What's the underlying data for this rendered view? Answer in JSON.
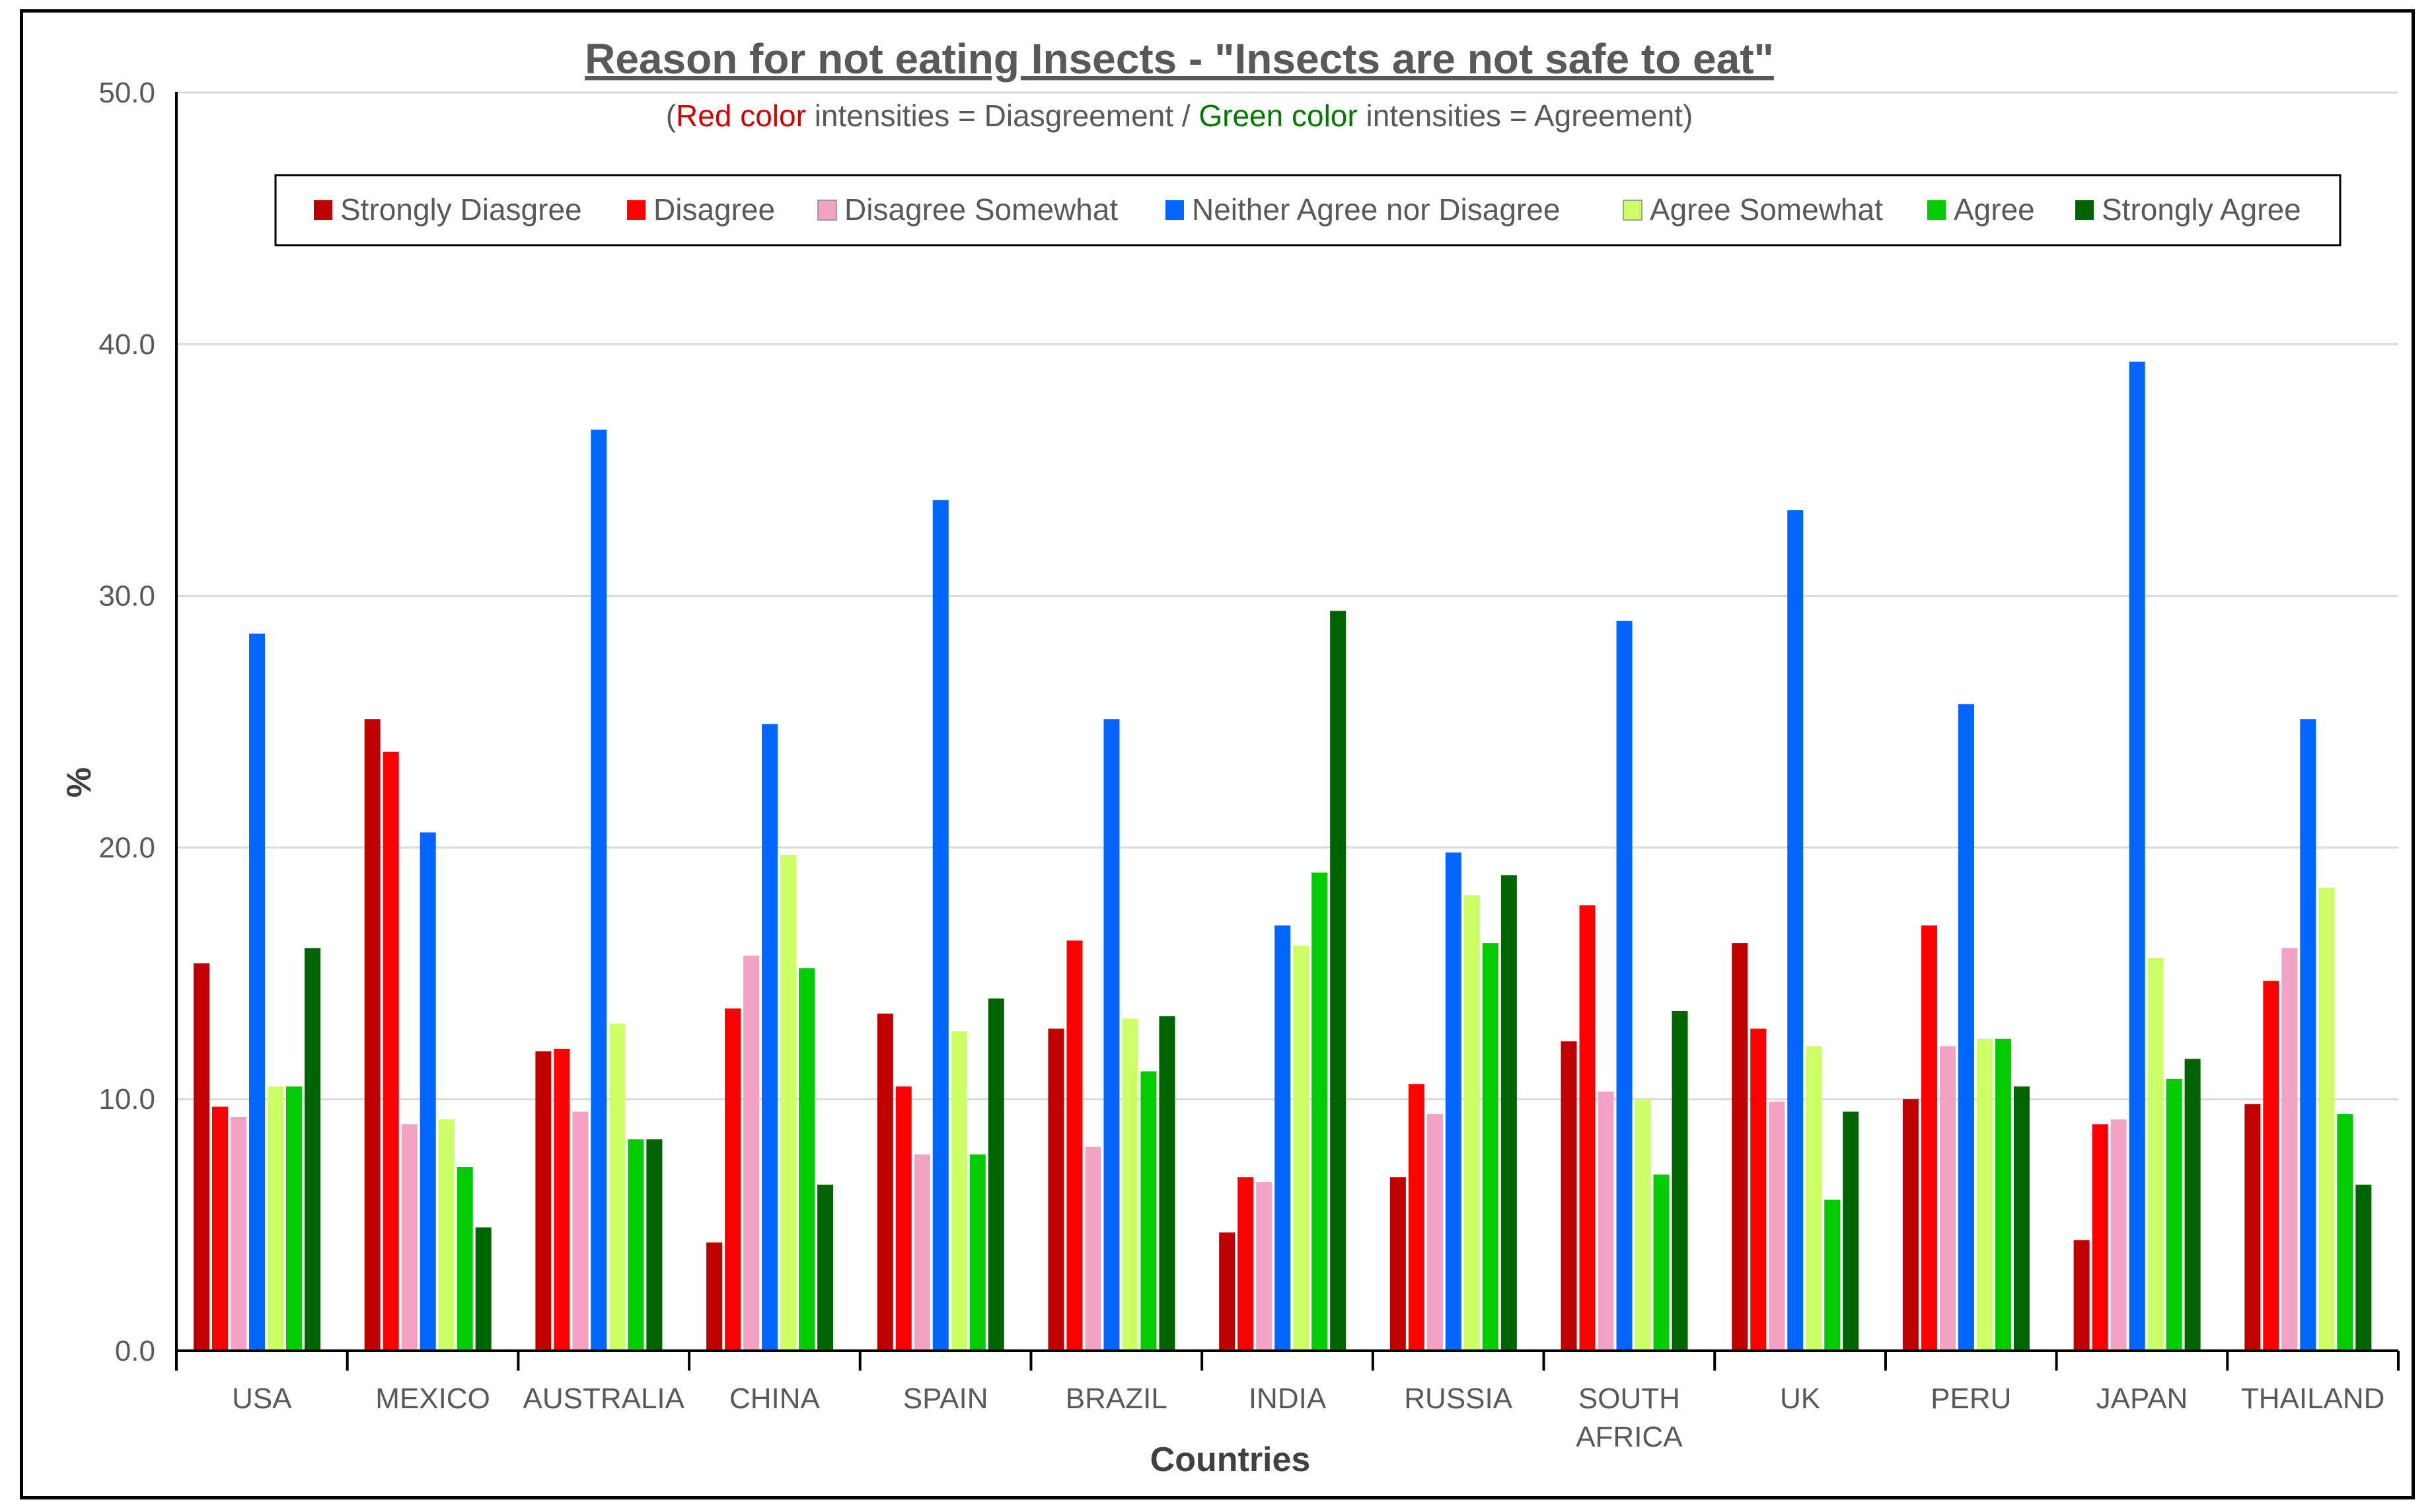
{
  "chart_data": {
    "type": "bar",
    "title": "Reason for not eating Insects - \"Insects are not safe to eat\"",
    "subtitle": {
      "open": "(",
      "red_part": "Red color",
      "mid1": " intensities = Diasgreement / ",
      "green_part": "Green color",
      "mid2": " intensities = Agreement)",
      "red_color": "#d40000",
      "green_color": "#007a00"
    },
    "xlabel": "Countries",
    "ylabel": "%",
    "ylim": [
      0,
      50
    ],
    "yticks": [
      "0.0",
      "10.0",
      "20.0",
      "30.0",
      "40.0",
      "50.0"
    ],
    "grid": true,
    "legend_position": "top-center",
    "categories": [
      "USA",
      "MEXICO",
      "AUSTRALIA",
      "CHINA",
      "SPAIN",
      "BRAZIL",
      "INDIA",
      "RUSSIA",
      "SOUTH AFRICA",
      "UK",
      "PERU",
      "JAPAN",
      "THAILAND"
    ],
    "series": [
      {
        "name": "Strongly Diasgree",
        "color": "#c00000",
        "values": [
          15.4,
          25.1,
          11.9,
          4.3,
          13.4,
          12.8,
          4.7,
          6.9,
          12.3,
          16.2,
          10.0,
          4.4,
          9.8
        ]
      },
      {
        "name": "Disagree",
        "color": "#ff0000",
        "values": [
          9.7,
          23.8,
          12.0,
          13.6,
          10.5,
          16.3,
          6.9,
          10.6,
          17.7,
          12.8,
          16.9,
          9.0,
          14.7
        ]
      },
      {
        "name": "Disagree Somewhat",
        "color": "#f4a1c6",
        "values": [
          9.3,
          9.0,
          9.5,
          15.7,
          7.8,
          8.1,
          6.7,
          9.4,
          10.3,
          9.9,
          12.1,
          9.2,
          16.0
        ]
      },
      {
        "name": "Neither Agree nor Disagree",
        "color": "#0066ff",
        "values": [
          28.5,
          20.6,
          36.6,
          24.9,
          33.8,
          25.1,
          16.9,
          19.8,
          29.0,
          33.4,
          25.7,
          39.3,
          25.1
        ]
      },
      {
        "name": "Agree Somewhat",
        "color": "#ccff66",
        "values": [
          10.5,
          9.2,
          13.0,
          19.7,
          12.7,
          13.2,
          16.1,
          18.1,
          10.0,
          12.1,
          12.4,
          15.6,
          18.4
        ]
      },
      {
        "name": "Agree",
        "color": "#00cc00",
        "values": [
          10.5,
          7.3,
          8.4,
          15.2,
          7.8,
          11.1,
          19.0,
          16.2,
          7.0,
          6.0,
          12.4,
          10.8,
          9.4
        ]
      },
      {
        "name": "Strongly Agree",
        "color": "#006400",
        "values": [
          16.0,
          4.9,
          8.4,
          6.6,
          14.0,
          13.3,
          29.4,
          18.9,
          13.5,
          9.5,
          10.5,
          11.6,
          6.6
        ]
      }
    ]
  }
}
